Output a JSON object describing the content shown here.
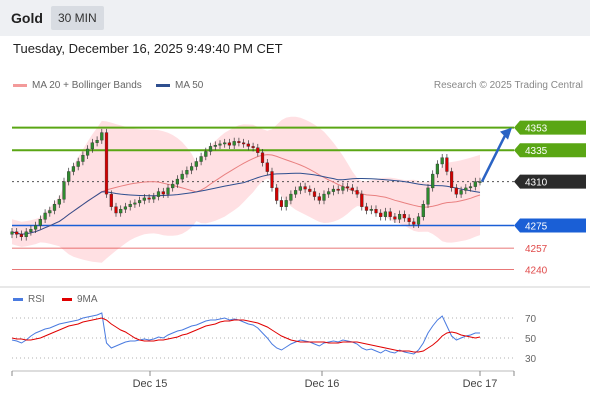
{
  "header": {
    "title": "Gold",
    "timeframe": "30 MIN"
  },
  "datetime": "Tuesday, December 16, 2025 9:49:40 PM CET",
  "credit": "Research © 2025 Trading Central",
  "colors": {
    "up": "#2e8b2e",
    "down": "#d40000",
    "bb_fill": "#ffd6d9",
    "ma20": "#e98080",
    "ma50": "#2f4f8f",
    "res": "#5aa614",
    "sup": "#1a5fd6",
    "sup_low": "#e04a4a",
    "rsi": "#4a7be0",
    "rsi_ma": "#e00000"
  },
  "chart_data": [
    {
      "type": "candlestick",
      "legend": [
        "MA 20 + Bollinger Bands",
        "MA 50"
      ],
      "ylim": [
        4230,
        4375
      ],
      "x_ticks": [
        "Dec 15",
        "Dec 16",
        "Dec 17"
      ],
      "current_price": 4310,
      "target_price": 4353,
      "levels": [
        {
          "value": 4353,
          "label": "4353",
          "kind": "resistance"
        },
        {
          "value": 4335,
          "label": "4335",
          "kind": "resistance"
        },
        {
          "value": 4310,
          "label": "4310",
          "kind": "current"
        },
        {
          "value": 4275,
          "label": "4275",
          "kind": "support"
        },
        {
          "value": 4257,
          "label": "4257",
          "kind": "support_weak"
        },
        {
          "value": 4240,
          "label": "4240",
          "kind": "support_weak"
        }
      ],
      "close": [
        4270,
        4268,
        4266,
        4270,
        4272,
        4275,
        4280,
        4285,
        4287,
        4292,
        4296,
        4310,
        4318,
        4322,
        4326,
        4331,
        4336,
        4341,
        4343,
        4349,
        4300,
        4290,
        4285,
        4288,
        4290,
        4292,
        4293,
        4295,
        4297,
        4296,
        4298,
        4302,
        4300,
        4305,
        4308,
        4312,
        4316,
        4319,
        4322,
        4326,
        4330,
        4334,
        4338,
        4339,
        4340,
        4341,
        4339,
        4342,
        4341,
        4340,
        4338,
        4337,
        4333,
        4325,
        4318,
        4305,
        4295,
        4290,
        4295,
        4300,
        4303,
        4306,
        4304,
        4302,
        4298,
        4295,
        4300,
        4302,
        4304,
        4303,
        4306,
        4305,
        4303,
        4300,
        4290,
        4287,
        4288,
        4285,
        4282,
        4286,
        4282,
        4280,
        4284,
        4281,
        4278,
        4276,
        4282,
        4292,
        4305,
        4316,
        4324,
        4329,
        4318,
        4305,
        4300,
        4303,
        4305,
        4306,
        4310,
        4310
      ]
    },
    {
      "type": "line",
      "legend": [
        "RSI",
        "9MA"
      ],
      "ylim": [
        20,
        80
      ],
      "y_ticks": [
        70,
        50,
        30
      ],
      "series": [
        {
          "name": "RSI",
          "values": [
            48,
            47,
            45,
            48,
            52,
            55,
            57,
            59,
            60,
            62,
            64,
            65,
            66,
            67,
            68,
            70,
            71,
            72,
            73,
            75,
            45,
            40,
            42,
            44,
            46,
            47,
            47,
            48,
            49,
            48,
            49,
            51,
            50,
            53,
            55,
            57,
            58,
            60,
            62,
            63,
            65,
            67,
            68,
            68,
            69,
            70,
            68,
            69,
            68,
            66,
            64,
            63,
            60,
            55,
            50,
            44,
            40,
            38,
            41,
            44,
            46,
            48,
            47,
            46,
            44,
            42,
            45,
            46,
            47,
            46,
            48,
            47,
            46,
            44,
            40,
            38,
            39,
            37,
            35,
            38,
            36,
            35,
            38,
            36,
            35,
            34,
            38,
            45,
            55,
            62,
            68,
            72,
            62,
            52,
            48,
            50,
            52,
            53,
            55,
            55
          ]
        },
        {
          "name": "9MA",
          "values": [
            50,
            49,
            49,
            48,
            48,
            49,
            50,
            52,
            54,
            56,
            58,
            60,
            62,
            63,
            64,
            66,
            67,
            68,
            69,
            70,
            68,
            64,
            61,
            58,
            56,
            53,
            50,
            48,
            47,
            47,
            47,
            48,
            48,
            49,
            50,
            51,
            53,
            54,
            56,
            58,
            60,
            62,
            63,
            64,
            66,
            67,
            67,
            68,
            68,
            68,
            67,
            66,
            65,
            63,
            61,
            58,
            55,
            52,
            50,
            48,
            47,
            46,
            46,
            46,
            46,
            46,
            46,
            45,
            45,
            45,
            46,
            46,
            46,
            46,
            45,
            44,
            43,
            42,
            41,
            40,
            39,
            38,
            37,
            37,
            37,
            36,
            36,
            37,
            40,
            43,
            47,
            52,
            55,
            56,
            55,
            53,
            52,
            51,
            50,
            51
          ]
        }
      ]
    }
  ]
}
